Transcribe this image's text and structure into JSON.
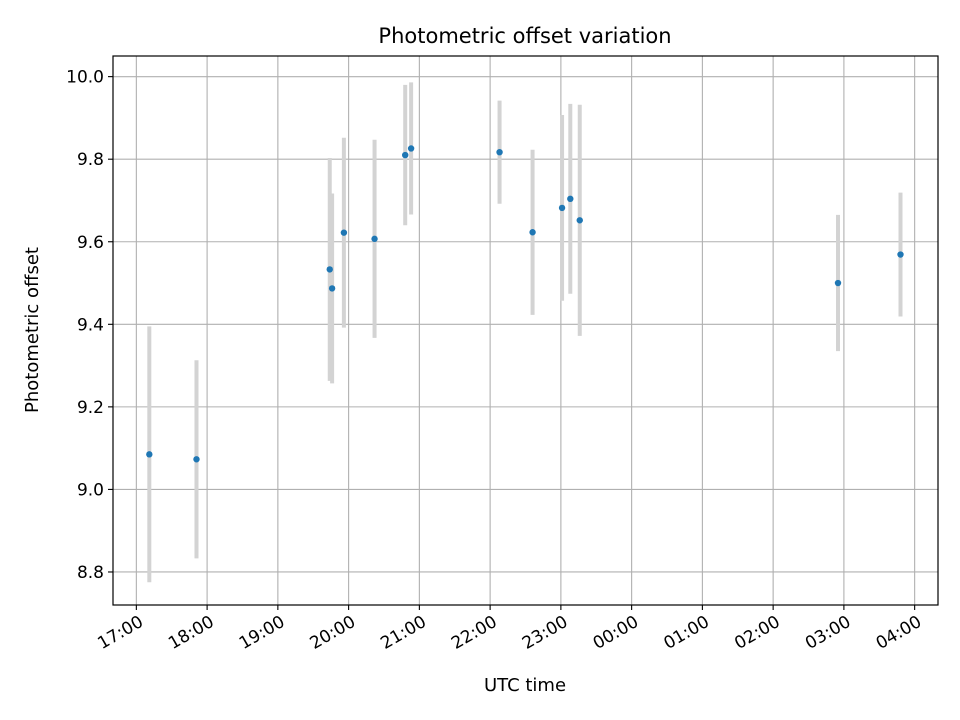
{
  "chart_data": {
    "type": "scatter",
    "title": "Photometric offset variation",
    "xlabel": "UTC time",
    "ylabel": "Photometric offset",
    "x_tick_labels": [
      "17:00",
      "18:00",
      "19:00",
      "20:00",
      "21:00",
      "22:00",
      "23:00",
      "00:00",
      "01:00",
      "02:00",
      "03:00",
      "04:00"
    ],
    "xlim_hours": [
      16.67,
      28.33
    ],
    "ylim": [
      8.72,
      10.05
    ],
    "y_ticks": [
      "8.8",
      "9.0",
      "9.2",
      "9.4",
      "9.6",
      "9.8",
      "10.0"
    ],
    "grid": true,
    "point_color": "#1f77b4",
    "errorbar_color": "#d3d3d3",
    "points": [
      {
        "t": "17:11",
        "y": 9.085,
        "err": 0.31
      },
      {
        "t": "17:51",
        "y": 9.073,
        "err": 0.24
      },
      {
        "t": "19:44",
        "y": 9.533,
        "err": 0.27
      },
      {
        "t": "19:46",
        "y": 9.487,
        "err": 0.23
      },
      {
        "t": "19:56",
        "y": 9.622,
        "err": 0.23
      },
      {
        "t": "20:22",
        "y": 9.607,
        "err": 0.24
      },
      {
        "t": "20:48",
        "y": 9.81,
        "err": 0.17
      },
      {
        "t": "20:53",
        "y": 9.826,
        "err": 0.16
      },
      {
        "t": "22:08",
        "y": 9.817,
        "err": 0.125
      },
      {
        "t": "22:36",
        "y": 9.623,
        "err": 0.2
      },
      {
        "t": "23:01",
        "y": 9.682,
        "err": 0.225
      },
      {
        "t": "23:08",
        "y": 9.704,
        "err": 0.23
      },
      {
        "t": "23:16",
        "y": 9.652,
        "err": 0.28
      },
      {
        "t": "02:55",
        "y": 9.5,
        "err": 0.165
      },
      {
        "t": "03:48",
        "y": 9.569,
        "err": 0.15
      }
    ]
  }
}
